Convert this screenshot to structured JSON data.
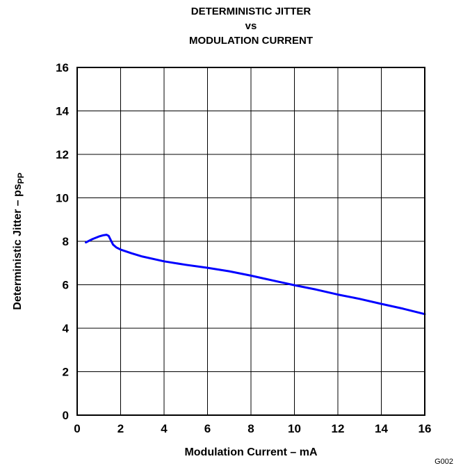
{
  "chart_data": {
    "type": "line",
    "title_lines": [
      "DETERMINISTIC JITTER",
      "vs",
      "MODULATION CURRENT"
    ],
    "xlabel": "Modulation Current – mA",
    "ylabel": "Deterministic Jitter – ps",
    "ylabel_subscript": "PP",
    "xlim": [
      0,
      16
    ],
    "ylim": [
      0,
      16
    ],
    "xticks": [
      "0",
      "2",
      "4",
      "6",
      "8",
      "10",
      "12",
      "14",
      "16"
    ],
    "yticks": [
      "0",
      "2",
      "4",
      "6",
      "8",
      "10",
      "12",
      "14",
      "16"
    ],
    "grid": true,
    "figure_code": "G002",
    "series": [
      {
        "color": "#0000ff",
        "x": [
          0.4,
          0.7,
          1.0,
          1.2,
          1.35,
          1.45,
          1.55,
          1.65,
          1.8,
          2.0,
          2.5,
          3.0,
          4.0,
          5.0,
          6.0,
          7.0,
          8.0,
          9.0,
          10.0,
          11.0,
          12.0,
          13.0,
          14.0,
          15.0,
          16.0
        ],
        "y": [
          7.95,
          8.1,
          8.22,
          8.28,
          8.3,
          8.25,
          8.05,
          7.85,
          7.72,
          7.62,
          7.45,
          7.3,
          7.08,
          6.92,
          6.78,
          6.62,
          6.42,
          6.2,
          5.98,
          5.78,
          5.55,
          5.35,
          5.12,
          4.9,
          4.65
        ]
      }
    ]
  }
}
